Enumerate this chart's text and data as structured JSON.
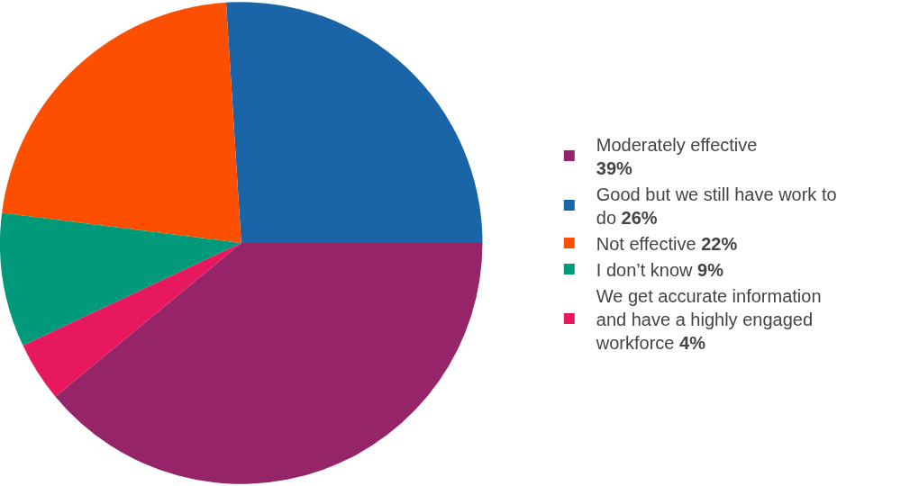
{
  "chart_data": {
    "type": "pie",
    "categories": [
      "Moderately effective",
      "Good but we still have work to do",
      "Not effective",
      "I don’t know",
      "We get accurate information and have a highly engaged workforce"
    ],
    "values": [
      39,
      26,
      22,
      9,
      4
    ],
    "value_labels": [
      "39%",
      "26%",
      "22%",
      "9%",
      "4%"
    ],
    "colors": [
      "#962468",
      "#1a64a8",
      "#fc4f00",
      "#009a7a",
      "#e8185e"
    ],
    "legend": "right"
  }
}
